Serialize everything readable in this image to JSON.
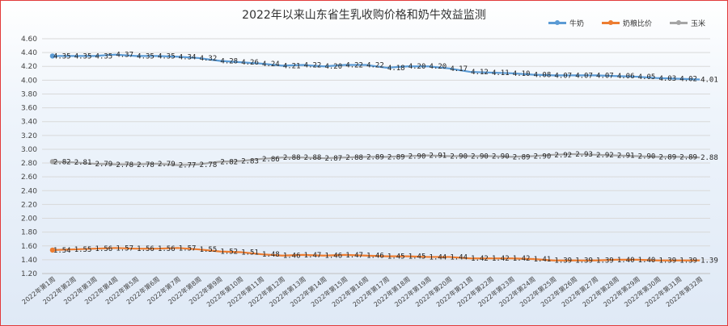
{
  "chart_data": {
    "type": "line",
    "title": "2022年以来山东省生乳收购价格和奶牛效益监测",
    "ylim": [
      1.2,
      4.6
    ],
    "yticks": [
      "4.60",
      "4.40",
      "4.20",
      "4.00",
      "3.80",
      "3.60",
      "3.40",
      "3.20",
      "3.00",
      "2.80",
      "2.60",
      "2.40",
      "2.20",
      "2.00",
      "1.80",
      "1.60",
      "1.40",
      "1.20"
    ],
    "categories": [
      "2022年第1周",
      "2022年第2周",
      "2022年第3周",
      "2022年第4周",
      "2022年第5周",
      "2022年第6周",
      "2022年第7周",
      "2022年第8周",
      "2022年第9周",
      "2022年第10周",
      "2022年第11周",
      "2022年第12周",
      "2022年第13周",
      "2022年第14周",
      "2022年第15周",
      "2022年第16周",
      "2022年第17周",
      "2022年第18周",
      "2022年第19周",
      "2022年第20周",
      "2022年第21周",
      "2022年第22周",
      "2022年第23周",
      "2022年第24周",
      "2022年第25周",
      "2022年第26周",
      "2022年第27周",
      "2022年第28周",
      "2022年第29周",
      "2022年第30周",
      "2022年第31周",
      "2022年第32周"
    ],
    "series": [
      {
        "name": "牛奶",
        "color": "#5b9bd5",
        "values": [
          4.35,
          4.35,
          4.35,
          4.37,
          4.35,
          4.35,
          4.34,
          4.32,
          4.28,
          4.26,
          4.24,
          4.21,
          4.22,
          4.2,
          4.22,
          4.22,
          4.18,
          4.2,
          4.2,
          4.17,
          4.12,
          4.11,
          4.1,
          4.08,
          4.07,
          4.07,
          4.07,
          4.06,
          4.05,
          4.03,
          4.02,
          4.01
        ],
        "labels": [
          "4.35",
          "4.35",
          "4.35",
          "4.37",
          "4.35",
          "4.35",
          "4.34",
          "4.32",
          "4.28",
          "4.26",
          "4.24",
          "4.21",
          "4.22",
          "4.20",
          "4.22",
          "4.22",
          "4.18",
          "4.20",
          "4.20",
          "4.17",
          "4.12",
          "4.11",
          "4.10",
          "4.08",
          "4.07",
          "4.07",
          "4.07",
          "4.06",
          "4.05",
          "4.03",
          "4.02",
          "4.01"
        ]
      },
      {
        "name": "奶粮比价",
        "color": "#ed7d31",
        "values": [
          1.54,
          1.55,
          1.56,
          1.57,
          1.56,
          1.56,
          1.57,
          1.55,
          1.52,
          1.51,
          1.48,
          1.46,
          1.47,
          1.46,
          1.47,
          1.46,
          1.45,
          1.45,
          1.44,
          1.44,
          1.42,
          1.42,
          1.42,
          1.41,
          1.39,
          1.39,
          1.39,
          1.4,
          1.4,
          1.39,
          1.39,
          1.39
        ],
        "labels": [
          "1.54",
          "1.55",
          "1.56",
          "1.57",
          "1.56",
          "1.56",
          "1.57",
          "1.55",
          "1.52",
          "1.51",
          "1.48",
          "1.46",
          "1.47",
          "1.46",
          "1.47",
          "1.46",
          "1.45",
          "1.45",
          "1.44",
          "1.44",
          "1.42",
          "1.42",
          "1.42",
          "1.41",
          "1.39",
          "1.39",
          "1.39",
          "1.40",
          "1.40",
          "1.39",
          "1.39",
          "1.39"
        ]
      },
      {
        "name": "玉米",
        "color": "#a5a5a5",
        "values": [
          2.82,
          2.81,
          2.79,
          2.78,
          2.78,
          2.79,
          2.77,
          2.78,
          2.82,
          2.83,
          2.86,
          2.88,
          2.88,
          2.87,
          2.88,
          2.89,
          2.89,
          2.9,
          2.91,
          2.9,
          2.9,
          2.9,
          2.89,
          2.9,
          2.92,
          2.93,
          2.92,
          2.91,
          2.9,
          2.89,
          2.89,
          2.88
        ],
        "labels": [
          "2.82",
          "2.81",
          "2.79",
          "2.78",
          "2.78",
          "2.79",
          "2.77",
          "2.78",
          "2.82",
          "2.83",
          "2.86",
          "2.88",
          "2.88",
          "2.87",
          "2.88",
          "2.89",
          "2.89",
          "2.90",
          "2.91",
          "2.90",
          "2.90",
          "2.90",
          "2.89",
          "2.90",
          "2.92",
          "2.93",
          "2.92",
          "2.91",
          "2.90",
          "2.89",
          "2.89",
          "2.88"
        ]
      }
    ],
    "legend_position": "top-right",
    "grid": true
  }
}
